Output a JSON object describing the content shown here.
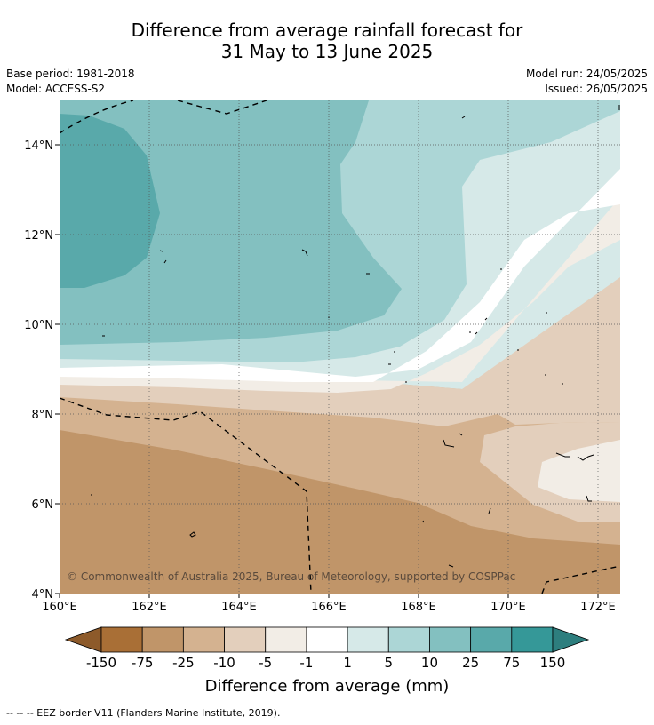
{
  "title_line1": "Difference from average rainfall forecast for",
  "title_line2": "31 May to 13 June 2025",
  "base_period": "Base period: 1981-2018",
  "model": "Model: ACCESS-S2",
  "model_run": "Model run: 24/05/2025",
  "issued": "Issued: 26/05/2025",
  "copyright": "© Commonwealth of Australia 2025, Bureau of Meteorology, supported by COSPPac",
  "footnote": "--  --  -- EEZ border V11 (Flanders Marine Institute, 2019).",
  "lon_ticks": [
    "160°E",
    "162°E",
    "164°E",
    "166°E",
    "168°E",
    "170°E",
    "172°E"
  ],
  "lat_ticks": [
    "14°N",
    "12°N",
    "10°N",
    "8°N",
    "6°N",
    "4°N"
  ],
  "colorbar": {
    "title": "Difference from average (mm)",
    "tick_labels": [
      "-150",
      "-75",
      "-25",
      "-10",
      "-5",
      "-1",
      "1",
      "5",
      "10",
      "25",
      "75",
      "150"
    ],
    "colors": [
      "#a96f36",
      "#c09569",
      "#d4b290",
      "#e3cfbc",
      "#f2ede6",
      "#ffffff",
      "#d6e9e8",
      "#acd6d6",
      "#83c0c0",
      "#59a9aa",
      "#359898"
    ],
    "under_color": "#8d5a2a",
    "over_color": "#2d7e7e"
  },
  "legend": {
    "eez_label": "EEZ border V11 (Flanders Marine Institute, 2019)"
  }
}
